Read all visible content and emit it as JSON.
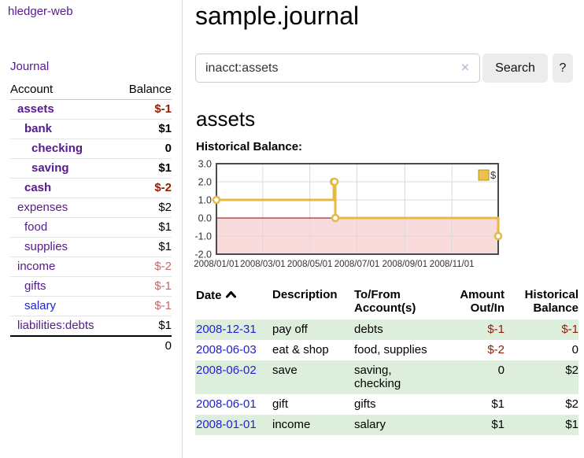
{
  "app": {
    "brand": "hledger-web"
  },
  "sidebar": {
    "journal_link": "Journal",
    "accounts_table": {
      "headers": {
        "account": "Account",
        "balance": "Balance"
      },
      "rows": [
        {
          "name": "assets",
          "balance": "$-1"
        },
        {
          "name": "bank",
          "balance": "$1"
        },
        {
          "name": "checking",
          "balance": "0"
        },
        {
          "name": "saving",
          "balance": "$1"
        },
        {
          "name": "cash",
          "balance": "$-2"
        },
        {
          "name": "expenses",
          "balance": "$2"
        },
        {
          "name": "food",
          "balance": "$1"
        },
        {
          "name": "supplies",
          "balance": "$1"
        },
        {
          "name": "income",
          "balance": "$-2"
        },
        {
          "name": "gifts",
          "balance": "$-1"
        },
        {
          "name": "salary",
          "balance": "$-1"
        },
        {
          "name": "liabilities:debts",
          "balance": "$1"
        }
      ],
      "total": "0"
    }
  },
  "main": {
    "title": "sample.journal",
    "search": {
      "value": "inacct:assets",
      "clear_icon": "×",
      "search_button": "Search",
      "help_button": "?"
    },
    "account_heading": "assets",
    "chart_heading": "Historical Balance:"
  },
  "chart_data": {
    "type": "line",
    "title": "Historical Balance",
    "step": true,
    "x_range": [
      "2008/01/01",
      "2008/12/31"
    ],
    "ylim": [
      -2.0,
      3.0
    ],
    "yticks": [
      3.0,
      2.0,
      1.0,
      0.0,
      -1.0,
      -2.0
    ],
    "xticks": [
      "2008/01/01",
      "2008/03/01",
      "2008/05/01",
      "2008/07/01",
      "2008/09/01",
      "2008/11/01"
    ],
    "grid": true,
    "legend": {
      "label": "$",
      "position": "top-right"
    },
    "series": [
      {
        "name": "$",
        "points": [
          [
            "2008/01/01",
            1
          ],
          [
            "2008/06/01",
            2
          ],
          [
            "2008/06/02",
            2
          ],
          [
            "2008/06/03",
            0
          ],
          [
            "2008/12/31",
            -1
          ]
        ]
      }
    ],
    "colors": {
      "series": "#e4ba45",
      "zero_line": "#8b0000",
      "negative_region": "#fadbdb",
      "gridline": "#dadada",
      "plot_border": "#4a4a4a"
    }
  },
  "register": {
    "headers": {
      "date": "Date",
      "description": "Description",
      "accounts": "To/From Account(s)",
      "amount": "Amount Out/In",
      "balance": "Historical Balance"
    },
    "rows": [
      {
        "date": "2008-12-31",
        "description": "pay off",
        "accounts": "debts",
        "amount": "$-1",
        "balance": "$-1"
      },
      {
        "date": "2008-06-03",
        "description": "eat & shop",
        "accounts": "food, supplies",
        "amount": "$-2",
        "balance": "0"
      },
      {
        "date": "2008-06-02",
        "description": "save",
        "accounts": "saving, checking",
        "amount": "0",
        "balance": "$2"
      },
      {
        "date": "2008-06-01",
        "description": "gift",
        "accounts": "gifts",
        "amount": "$1",
        "balance": "$2"
      },
      {
        "date": "2008-01-01",
        "description": "income",
        "accounts": "salary",
        "amount": "$1",
        "balance": "$1"
      }
    ]
  }
}
